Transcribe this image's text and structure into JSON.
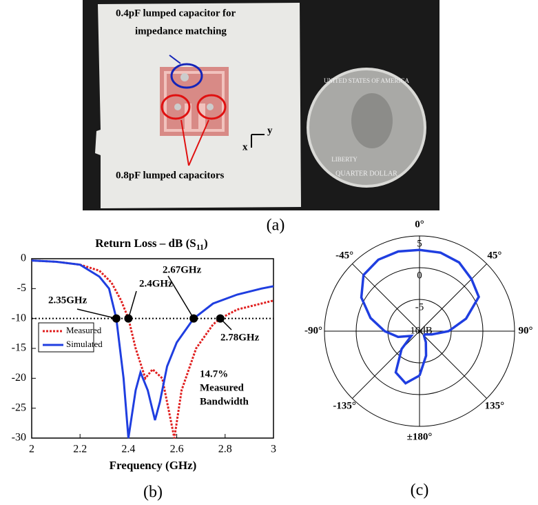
{
  "photo": {
    "caption": "(a)",
    "cap_label": [
      "0.4pF lumped capacitor for",
      "impedance matching"
    ],
    "caps_label": "0.8pF lumped capacitors",
    "axis_x": "x",
    "axis_y": "y",
    "coin": [
      "UNITED STATES OF AMERICA",
      "LIBERTY",
      "QUARTER DOLLAR"
    ]
  },
  "chart_data": [
    {
      "type": "line",
      "caption": "(b)",
      "title": [
        "Return Loss – dB (S",
        "11",
        ")"
      ],
      "xlabel": "Frequency (GHz)",
      "xlim": [
        2,
        3
      ],
      "xticks": [
        2,
        2.2,
        2.4,
        2.6,
        2.8,
        3
      ],
      "ylim": [
        -30,
        0
      ],
      "yticks": [
        0,
        -5,
        -10,
        -15,
        -20,
        -25,
        -30
      ],
      "hline": -10,
      "series": [
        {
          "name": "Measured",
          "color": "#e02020",
          "dash": "dotted",
          "x": [
            2,
            2.1,
            2.2,
            2.28,
            2.33,
            2.37,
            2.4,
            2.43,
            2.47,
            2.5,
            2.54,
            2.59,
            2.62,
            2.68,
            2.75,
            2.78,
            2.85,
            2.95,
            3
          ],
          "values": [
            -0.3,
            -0.5,
            -1,
            -2,
            -4,
            -7,
            -10,
            -15,
            -20,
            -18.5,
            -20,
            -30,
            -22,
            -15,
            -11,
            -10,
            -8.5,
            -7.5,
            -7
          ]
        },
        {
          "name": "Simulated",
          "color": "#1f3ee0",
          "dash": "solid",
          "x": [
            2,
            2.1,
            2.2,
            2.28,
            2.32,
            2.35,
            2.38,
            2.4,
            2.43,
            2.45,
            2.48,
            2.51,
            2.53,
            2.56,
            2.6,
            2.67,
            2.75,
            2.85,
            2.95,
            3
          ],
          "values": [
            -0.3,
            -0.5,
            -1,
            -3,
            -5,
            -10,
            -20,
            -30,
            -22,
            -19,
            -22,
            -27,
            -24,
            -18,
            -14,
            -10,
            -7.5,
            -6,
            -5,
            -4.6
          ]
        }
      ],
      "annotations": [
        {
          "text": "2.35GHz",
          "x": 2.35,
          "y": -10
        },
        {
          "text": "2.4GHz",
          "x": 2.4,
          "y": -10
        },
        {
          "text": "2.67GHz",
          "x": 2.67,
          "y": -10
        },
        {
          "text": "2.78GHz",
          "x": 2.78,
          "y": -10
        }
      ],
      "note": [
        "14.7%",
        "Measured",
        "Bandwidth"
      ]
    },
    {
      "type": "polar",
      "caption": "(c)",
      "rlim": [
        -10,
        5
      ],
      "rticks": [
        {
          "value": -10,
          "label": "-10dB"
        },
        -5,
        0,
        5
      ],
      "thetaticks": [
        {
          "value": 0,
          "label": "0°"
        },
        {
          "value": 45,
          "label": "45°"
        },
        {
          "value": 90,
          "label": "90°"
        },
        {
          "value": 135,
          "label": "135°"
        },
        {
          "value": 180,
          "label": "±180°"
        },
        {
          "value": -135,
          "label": "-135°"
        },
        {
          "value": -90,
          "label": "-90°"
        },
        {
          "value": -45,
          "label": "-45°"
        }
      ],
      "series": [
        {
          "color": "#1f3ee0",
          "theta": [
            -180,
            -165,
            -150,
            -135,
            -120,
            -105,
            -90,
            -75,
            -60,
            -45,
            -30,
            -15,
            0,
            15,
            30,
            45,
            60,
            75,
            90,
            105,
            120,
            135,
            150,
            165,
            180
          ],
          "values": [
            -3,
            -1.5,
            -2.5,
            -6,
            -8.5,
            -6.5,
            -4.5,
            -2,
            0.6,
            2.5,
            3,
            3,
            2.8,
            2.8,
            2.5,
            1.6,
            0.8,
            -2.4,
            -5.4,
            -8,
            -9,
            -9,
            -8,
            -6,
            -3
          ]
        }
      ]
    }
  ]
}
